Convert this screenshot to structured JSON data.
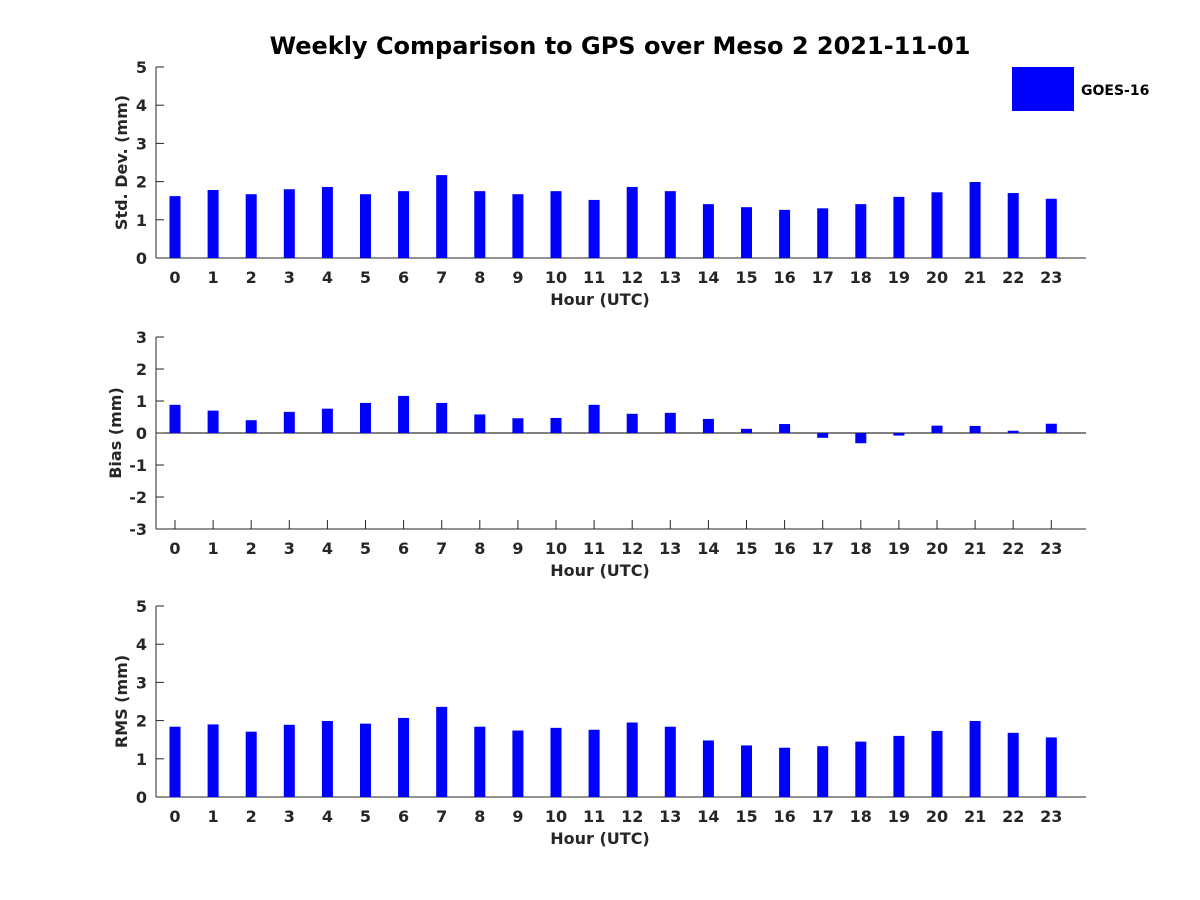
{
  "chart_data": {
    "title": "Weekly Comparison to GPS over Meso 2 2021-11-01",
    "series_name": "GOES-16",
    "bar_color": "#0000ff",
    "panels": [
      {
        "type": "bar",
        "ylabel": "Std. Dev. (mm)",
        "xlabel": "Hour (UTC)",
        "ylim": [
          0,
          5
        ],
        "yticks": [
          "0",
          "1",
          "2",
          "3",
          "4",
          "5"
        ],
        "categories": [
          "0",
          "1",
          "2",
          "3",
          "4",
          "5",
          "6",
          "7",
          "8",
          "9",
          "10",
          "11",
          "12",
          "13",
          "14",
          "15",
          "16",
          "17",
          "18",
          "19",
          "20",
          "21",
          "22",
          "23"
        ],
        "values": [
          1.62,
          1.78,
          1.67,
          1.8,
          1.86,
          1.67,
          1.75,
          2.17,
          1.75,
          1.67,
          1.75,
          1.52,
          1.86,
          1.75,
          1.41,
          1.33,
          1.26,
          1.3,
          1.41,
          1.6,
          1.72,
          1.99,
          1.7,
          1.55
        ]
      },
      {
        "type": "bar",
        "ylabel": "Bias (mm)",
        "xlabel": "Hour (UTC)",
        "ylim": [
          -3,
          3
        ],
        "yticks": [
          "-3",
          "-2",
          "-1",
          "0",
          "1",
          "2",
          "3"
        ],
        "categories": [
          "0",
          "1",
          "2",
          "3",
          "4",
          "5",
          "6",
          "7",
          "8",
          "9",
          "10",
          "11",
          "12",
          "13",
          "14",
          "15",
          "16",
          "17",
          "18",
          "19",
          "20",
          "21",
          "22",
          "23"
        ],
        "values": [
          0.88,
          0.7,
          0.4,
          0.66,
          0.76,
          0.94,
          1.16,
          0.94,
          0.58,
          0.46,
          0.47,
          0.88,
          0.6,
          0.63,
          0.44,
          0.13,
          0.28,
          -0.15,
          -0.32,
          -0.08,
          0.23,
          0.22,
          0.07,
          0.29
        ]
      },
      {
        "type": "bar",
        "ylabel": "RMS (mm)",
        "xlabel": "Hour (UTC)",
        "ylim": [
          0,
          5
        ],
        "yticks": [
          "0",
          "1",
          "2",
          "3",
          "4",
          "5"
        ],
        "categories": [
          "0",
          "1",
          "2",
          "3",
          "4",
          "5",
          "6",
          "7",
          "8",
          "9",
          "10",
          "11",
          "12",
          "13",
          "14",
          "15",
          "16",
          "17",
          "18",
          "19",
          "20",
          "21",
          "22",
          "23"
        ],
        "values": [
          1.84,
          1.9,
          1.71,
          1.89,
          1.99,
          1.92,
          2.07,
          2.36,
          1.84,
          1.74,
          1.81,
          1.76,
          1.95,
          1.84,
          1.48,
          1.35,
          1.29,
          1.33,
          1.45,
          1.6,
          1.73,
          1.99,
          1.68,
          1.56
        ]
      }
    ]
  }
}
